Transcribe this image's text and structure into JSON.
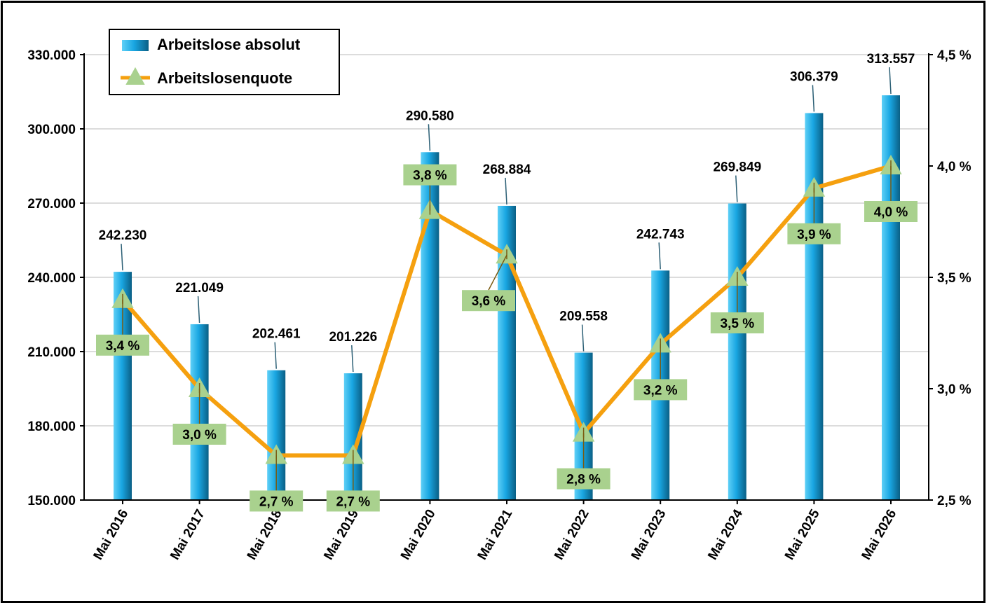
{
  "chart_data": {
    "type": "bar",
    "categories": [
      "Mai 2016",
      "Mai 2017",
      "Mai 2018",
      "Mai 2019",
      "Mai 2020",
      "Mai 2021",
      "Mai 2022",
      "Mai 2023",
      "Mai 2024",
      "Mai 2025",
      "Mai 2026"
    ],
    "series": [
      {
        "name": "Arbeitslose absolut",
        "type": "bar",
        "axis": "left",
        "values": [
          242230,
          221049,
          202461,
          201226,
          290580,
          268884,
          209558,
          242743,
          269849,
          306379,
          313557
        ],
        "labels": [
          "242.230",
          "221.049",
          "202.461",
          "201.226",
          "290.580",
          "268.884",
          "209.558",
          "242.743",
          "269.849",
          "306.379",
          "313.557"
        ],
        "color": "#1aa7e0"
      },
      {
        "name": "Arbeitslosenquote",
        "type": "line",
        "axis": "right",
        "values": [
          3.4,
          3.0,
          2.7,
          2.7,
          3.8,
          3.6,
          2.8,
          3.2,
          3.5,
          3.9,
          4.0
        ],
        "labels": [
          "3,4 %",
          "3,0 %",
          "2,7 %",
          "2,7 %",
          "3,8 %",
          "3,6 %",
          "2,8 %",
          "3,2 %",
          "3,5 %",
          "3,9 %",
          "4,0 %"
        ],
        "color": "#f5a00f",
        "marker_color": "#a9d18e"
      }
    ],
    "y_left": {
      "ylim": [
        150000,
        330000
      ],
      "ticks": [
        150000,
        180000,
        210000,
        240000,
        270000,
        300000,
        330000
      ],
      "tick_labels": [
        "150.000",
        "180.000",
        "210.000",
        "240.000",
        "270.000",
        "300.000",
        "330.000"
      ]
    },
    "y_right": {
      "ylim": [
        2.5,
        4.5
      ],
      "ticks": [
        2.5,
        3.0,
        3.5,
        4.0,
        4.5
      ],
      "tick_labels": [
        "2,5 %",
        "3,0 %",
        "3,5 %",
        "4,0 %",
        "4,5 %"
      ]
    },
    "grid": true,
    "legend": "top-left",
    "title": "",
    "xlabel": "",
    "ylabel": ""
  }
}
